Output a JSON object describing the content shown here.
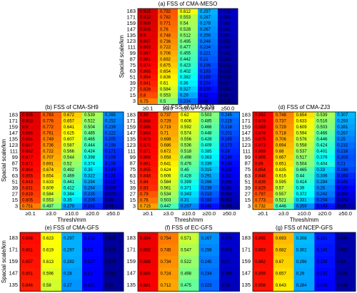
{
  "chart_data": [
    {
      "type": "heatmap",
      "title": "(a) FSS of CMA-MESO",
      "xlabel": "Thresh/mm",
      "ylabel": "Spacial scale/km",
      "colormap": "jet",
      "clim": [
        0,
        1
      ],
      "x_categories": [
        "≥0.1",
        "≥3.0",
        "≥10.0",
        "≥20.0",
        "≥50.0"
      ],
      "y_categories": [
        183,
        171,
        159,
        147,
        135,
        123,
        111,
        99,
        87,
        75,
        63,
        51,
        39,
        27,
        15,
        3
      ],
      "values": [
        [
          0.915,
          0.792,
          0.612,
          0.297,
          0.072
        ],
        [
          0.912,
          0.782,
          0.553,
          0.287,
          0.065
        ],
        [
          0.909,
          0.771,
          0.54,
          0.278,
          0.065
        ],
        [
          0.905,
          0.76,
          0.528,
          0.267,
          0.061
        ],
        [
          0.9,
          0.748,
          0.512,
          0.256,
          0.057
        ],
        [
          0.897,
          0.736,
          0.495,
          0.246,
          0.052
        ],
        [
          0.893,
          0.722,
          0.477,
          0.234,
          0.048
        ],
        [
          0.887,
          0.706,
          0.455,
          0.221,
          0.042
        ],
        [
          0.881,
          0.692,
          0.442,
          0.21,
          0.039
        ],
        [
          0.874,
          0.675,
          0.423,
          0.196,
          0.035
        ],
        [
          0.865,
          0.654,
          0.402,
          0.183,
          0.032
        ],
        [
          0.854,
          0.636,
          0.382,
          0.169,
          0.029
        ],
        [
          0.841,
          0.61,
          0.36,
          0.154,
          0.027
        ],
        [
          0.826,
          0.584,
          0.327,
          0.139,
          0.024
        ],
        [
          0.8,
          0.553,
          0.29,
          0.12,
          0.02
        ],
        [
          0.75,
          0.5,
          0.234,
          0.09,
          0.015
        ]
      ]
    },
    {
      "type": "heatmap",
      "title": "(b) FSS of CMA-SH9",
      "xlabel": "Thresh/mm",
      "ylabel": "Spacial scale/km",
      "colormap": "jet",
      "clim": [
        0,
        1
      ],
      "x_categories": [
        "≥0.1",
        "≥3.0",
        "≥10.0",
        "≥20.0",
        "≥50.0"
      ],
      "y_categories": [
        183,
        171,
        159,
        147,
        135,
        123,
        111,
        99,
        87,
        75,
        63,
        51,
        39,
        27,
        15,
        3
      ],
      "values": [
        [
          0.905,
          0.783,
          0.672,
          0.539,
          0.265
        ],
        [
          0.903,
          0.776,
          0.657,
          0.522,
          0.252
        ],
        [
          0.9,
          0.772,
          0.641,
          0.504,
          0.239
        ],
        [
          0.895,
          0.761,
          0.625,
          0.485,
          0.222
        ],
        [
          0.891,
          0.749,
          0.607,
          0.465,
          0.205
        ],
        [
          0.887,
          0.736,
          0.587,
          0.444,
          0.198
        ],
        [
          0.882,
          0.722,
          0.566,
          0.424,
          0.171
        ],
        [
          0.877,
          0.707,
          0.544,
          0.398,
          0.169
        ],
        [
          0.871,
          0.691,
          0.52,
          0.374,
          0.156
        ],
        [
          0.864,
          0.674,
          0.492,
          0.35,
          0.143
        ],
        [
          0.855,
          0.654,
          0.469,
          0.322,
          0.131
        ],
        [
          0.843,
          0.633,
          0.441,
          0.294,
          0.112
        ],
        [
          0.831,
          0.609,
          0.412,
          0.264,
          0.096
        ],
        [
          0.819,
          0.584,
          0.384,
          0.235,
          0.073
        ],
        [
          0.805,
          0.553,
          0.35,
          0.205,
          0.06
        ],
        [
          0.751,
          0.497,
          0.279,
          0.161,
          0.04
        ]
      ]
    },
    {
      "type": "heatmap",
      "title": "(c) FSS of CMA-ZJ9",
      "xlabel": "Thresh/mm",
      "colormap": "jet",
      "clim": [
        0,
        1
      ],
      "x_categories": [
        "≥0.1",
        "≥3.0",
        "≥10.0",
        "≥20.0",
        "≥50.0"
      ],
      "y_categories": [
        183,
        171,
        159,
        147,
        135,
        123,
        111,
        99,
        87,
        75,
        63,
        51,
        39,
        27,
        15,
        3
      ],
      "values": [
        [
          0.89,
          0.737,
          0.62,
          0.503,
          0.245
        ],
        [
          0.888,
          0.729,
          0.606,
          0.485,
          0.225
        ],
        [
          0.886,
          0.719,
          0.592,
          0.466,
          0.216
        ],
        [
          0.883,
          0.71,
          0.574,
          0.448,
          0.201
        ],
        [
          0.879,
          0.698,
          0.556,
          0.428,
          0.185
        ],
        [
          0.875,
          0.686,
          0.536,
          0.409,
          0.173
        ],
        [
          0.871,
          0.672,
          0.518,
          0.385,
          0.16
        ],
        [
          0.866,
          0.658,
          0.498,
          0.363,
          0.148
        ],
        [
          0.861,
          0.641,
          0.476,
          0.339,
          0.134
        ],
        [
          0.855,
          0.624,
          0.45,
          0.315,
          0.124
        ],
        [
          0.848,
          0.606,
          0.428,
          0.291,
          0.111
        ],
        [
          0.84,
          0.584,
          0.399,
          0.266,
          0.095
        ],
        [
          0.83,
          0.561,
          0.371,
          0.239,
          0.081
        ],
        [
          0.79,
          0.534,
          0.343,
          0.213,
          0.064
        ],
        [
          0.76,
          0.503,
          0.31,
          0.183,
          0.052
        ],
        [
          0.715,
          0.447,
          0.257,
          0.141,
          0.032
        ]
      ]
    },
    {
      "type": "heatmap",
      "title": "(d) FSS of CMA-ZJ3",
      "xlabel": "Thresh/mm",
      "colormap": "jet",
      "clim": [
        0,
        1
      ],
      "x_categories": [
        "≥0.1",
        "≥3.0",
        "≥10.0",
        "≥20.0",
        "≥50.0"
      ],
      "y_categories": [
        183,
        171,
        159,
        147,
        135,
        123,
        111,
        99,
        87,
        75,
        63,
        51,
        39,
        27,
        15,
        3
      ],
      "values": [
        [
          0.882,
          0.748,
          0.654,
          0.539,
          0.307
        ],
        [
          0.879,
          0.737,
          0.633,
          0.516,
          0.293
        ],
        [
          0.883,
          0.729,
          0.609,
          0.503,
          0.281
        ],
        [
          0.878,
          0.718,
          0.594,
          0.466,
          0.267
        ],
        [
          0.875,
          0.706,
          0.576,
          0.446,
          0.25
        ],
        [
          0.873,
          0.694,
          0.558,
          0.424,
          0.232
        ],
        [
          0.869,
          0.68,
          0.537,
          0.401,
          0.216
        ],
        [
          0.865,
          0.667,
          0.517,
          0.379,
          0.203
        ],
        [
          0.86,
          0.651,
          0.504,
          0.404,
          0.21
        ],
        [
          0.854,
          0.635,
          0.465,
          0.33,
          0.194
        ],
        [
          0.848,
          0.616,
          0.44,
          0.306,
          0.164
        ],
        [
          0.839,
          0.595,
          0.414,
          0.284,
          0.145
        ],
        [
          0.829,
          0.57,
          0.39,
          0.26,
          0.127
        ],
        [
          0.797,
          0.557,
          0.372,
          0.242,
          0.098
        ],
        [
          0.773,
          0.521,
          0.331,
          0.204,
          0.074
        ],
        [
          0.732,
          0.446,
          0.259,
          0.143,
          0.04
        ]
      ]
    },
    {
      "type": "heatmap",
      "title": "(e) FSS of CMA-GFS",
      "ylabel": "Spacial scale/km",
      "colormap": "jet",
      "clim": [
        0,
        1
      ],
      "y_categories": [
        183,
        171,
        159,
        147,
        135
      ],
      "values": [
        [
          0.866,
          0.623,
          0.297,
          0.132,
          0.025
        ],
        [
          0.861,
          0.619,
          0.297,
          0.13,
          0.025
        ],
        [
          0.857,
          0.613,
          0.292,
          0.127,
          0.024
        ],
        [
          0.851,
          0.596,
          0.28,
          0.12,
          0.021
        ],
        [
          0.846,
          0.58,
          0.27,
          0.115,
          0.02
        ]
      ]
    },
    {
      "type": "heatmap",
      "title": "(f) FSS of EC-GFS",
      "colormap": "jet",
      "clim": [
        0,
        1
      ],
      "y_categories": [
        183,
        171,
        159,
        147,
        135
      ],
      "values": [
        [
          0.894,
          0.754,
          0.571,
          0.267,
          0.076
        ],
        [
          0.892,
          0.745,
          0.547,
          0.256,
          0.074
        ],
        [
          0.888,
          0.734,
          0.522,
          0.245,
          0.07
        ],
        [
          0.885,
          0.724,
          0.498,
          0.234,
          0.065
        ],
        [
          0.881,
          0.712,
          0.475,
          0.223,
          0.06
        ]
      ]
    },
    {
      "type": "heatmap",
      "title": "(g) FSS of NCEP-GFS",
      "colormap": "jet",
      "clim": [
        0,
        1
      ],
      "y_categories": [
        183,
        171,
        159,
        147,
        135
      ],
      "values": [
        [
          0.865,
          0.693,
          0.308,
          0.151,
          0.043
        ],
        [
          0.863,
          0.682,
          0.302,
          0.145,
          0.042
        ],
        [
          0.862,
          0.67,
          0.296,
          0.138,
          0.04
        ],
        [
          0.859,
          0.657,
          0.29,
          0.131,
          0.039
        ],
        [
          0.856,
          0.643,
          0.284,
          0.125,
          0.038
        ]
      ]
    }
  ]
}
